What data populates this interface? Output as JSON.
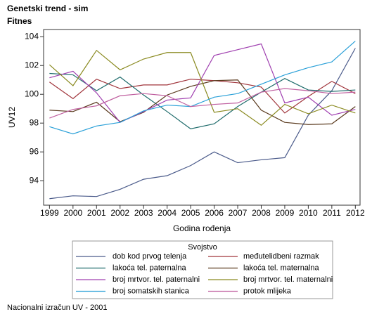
{
  "chart_data": {
    "type": "line",
    "title": "Genetski trend - sim",
    "subtitle": "Fitnes",
    "x_label": "Godina rođenja",
    "y_label": "UV12",
    "legend_title": "Svojstvo",
    "footnote": "Nacionalni izračun UV - 2001",
    "x": [
      1999,
      2000,
      2001,
      2002,
      2003,
      2004,
      2005,
      2006,
      2007,
      2008,
      2009,
      2010,
      2011,
      2012
    ],
    "xlim": [
      1998.75,
      2012.2
    ],
    "xticks": [
      1999,
      2000,
      2001,
      2002,
      2003,
      2004,
      2005,
      2006,
      2007,
      2008,
      2009,
      2010,
      2011,
      2012
    ],
    "ylim": [
      92.3,
      104.5
    ],
    "yticks": [
      94,
      96,
      98,
      100,
      102,
      104
    ],
    "series": [
      {
        "name": "dob kod prvog telenja",
        "color": "#4a5a8a",
        "values": [
          92.75,
          92.95,
          92.9,
          93.4,
          94.1,
          94.35,
          95.05,
          96.0,
          95.25,
          95.45,
          95.6,
          98.55,
          100.25,
          103.2
        ]
      },
      {
        "name": "međutelidbeni razmak",
        "color": "#a0343b",
        "values": [
          100.85,
          99.7,
          101.05,
          100.4,
          100.65,
          100.65,
          101.05,
          100.95,
          100.8,
          100.5,
          98.7,
          99.85,
          100.9,
          100.05
        ]
      },
      {
        "name": "lakoća tel. paternalna",
        "color": "#1e6b6b",
        "values": [
          101.45,
          101.35,
          100.25,
          101.2,
          99.95,
          98.8,
          97.6,
          97.95,
          99.15,
          100.15,
          101.1,
          100.3,
          100.2,
          100.3
        ]
      },
      {
        "name": "lakoća tel. maternalna",
        "color": "#5a3a1e",
        "values": [
          98.9,
          98.8,
          99.45,
          98.1,
          98.75,
          99.95,
          100.55,
          100.95,
          101.0,
          98.9,
          98.05,
          97.9,
          97.95,
          99.15
        ]
      },
      {
        "name": "broj mrtvor. tel. paternalni",
        "color": "#a040b0",
        "values": [
          101.15,
          101.6,
          100.1,
          98.05,
          98.8,
          99.6,
          99.75,
          102.7,
          103.1,
          103.5,
          99.4,
          99.8,
          98.55,
          98.95
        ]
      },
      {
        "name": "broj mrtvor. tel. maternalni",
        "color": "#8a8a20",
        "values": [
          102.05,
          100.6,
          103.05,
          101.7,
          102.45,
          102.9,
          102.9,
          98.75,
          99.0,
          97.85,
          99.3,
          98.65,
          99.25,
          98.7
        ]
      },
      {
        "name": "broj somatskih stanica",
        "color": "#2aa0d8",
        "values": [
          97.75,
          97.25,
          97.8,
          98.05,
          98.85,
          99.25,
          99.15,
          99.8,
          100.05,
          100.7,
          101.35,
          101.85,
          102.25,
          103.7
        ]
      },
      {
        "name": "protok mlijeka",
        "color": "#c060a0",
        "values": [
          98.35,
          98.95,
          99.2,
          99.9,
          100.05,
          99.9,
          99.15,
          99.3,
          99.4,
          100.15,
          100.4,
          100.25,
          100.05,
          100.15
        ]
      }
    ]
  }
}
